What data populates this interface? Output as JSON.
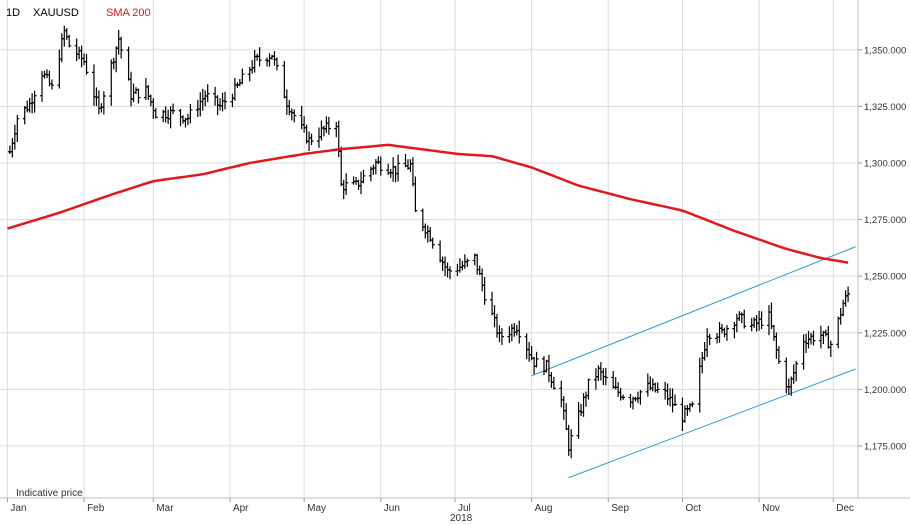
{
  "header": {
    "interval": "1D",
    "symbol": "XAUUSD",
    "indicator": "SMA 200"
  },
  "footer": {
    "note": "Indicative price",
    "year": "2018"
  },
  "colors": {
    "candle": "#000000",
    "sma": "#e0191f",
    "channel": "#2f9ad6",
    "grid": "#dcdcdc",
    "axis_text": "#333333",
    "indicator_label": "#e0191f"
  },
  "chart_data": {
    "type": "line",
    "title": "",
    "xlabel": "",
    "ylabel": "",
    "ylim": [
      1152,
      1372
    ],
    "y_ticks": [
      "1,175.000",
      "1,200.000",
      "1,225.000",
      "1,250.000",
      "1,275.000",
      "1,300.000",
      "1,325.000",
      "1,350.000"
    ],
    "y_tick_values": [
      1175,
      1200,
      1225,
      1250,
      1275,
      1300,
      1325,
      1350
    ],
    "x_ticks": [
      "Jan",
      "Feb",
      "Mar",
      "Apr",
      "May",
      "Jun",
      "Jul",
      "Aug",
      "Sep",
      "Oct",
      "Nov",
      "Dec"
    ],
    "grid": true,
    "series": [
      {
        "name": "XAUUSD",
        "style": "ohlc-bars",
        "anchors": [
          [
            "2018-01-02",
            1305
          ],
          [
            "2018-01-05",
            1320
          ],
          [
            "2018-01-10",
            1326
          ],
          [
            "2018-01-15",
            1340
          ],
          [
            "2018-01-19",
            1333
          ],
          [
            "2018-01-24",
            1358
          ],
          [
            "2018-01-26",
            1352
          ],
          [
            "2018-02-01",
            1345
          ],
          [
            "2018-02-07",
            1323
          ],
          [
            "2018-02-15",
            1355
          ],
          [
            "2018-02-20",
            1330
          ],
          [
            "2018-02-26",
            1332
          ],
          [
            "2018-03-02",
            1322
          ],
          [
            "2018-03-09",
            1322
          ],
          [
            "2018-03-15",
            1320
          ],
          [
            "2018-03-22",
            1330
          ],
          [
            "2018-03-28",
            1325
          ],
          [
            "2018-04-03",
            1332
          ],
          [
            "2018-04-11",
            1345
          ],
          [
            "2018-04-18",
            1348
          ],
          [
            "2018-04-24",
            1327
          ],
          [
            "2018-04-30",
            1315
          ],
          [
            "2018-05-03",
            1310
          ],
          [
            "2018-05-08",
            1314
          ],
          [
            "2018-05-14",
            1318
          ],
          [
            "2018-05-16",
            1290
          ],
          [
            "2018-05-22",
            1290
          ],
          [
            "2018-05-30",
            1300
          ],
          [
            "2018-06-07",
            1297
          ],
          [
            "2018-06-13",
            1299
          ],
          [
            "2018-06-15",
            1278
          ],
          [
            "2018-06-21",
            1268
          ],
          [
            "2018-06-28",
            1252
          ],
          [
            "2018-07-05",
            1255
          ],
          [
            "2018-07-09",
            1258
          ],
          [
            "2018-07-13",
            1242
          ],
          [
            "2018-07-19",
            1223
          ],
          [
            "2018-07-26",
            1228
          ],
          [
            "2018-08-02",
            1212
          ],
          [
            "2018-08-07",
            1210
          ],
          [
            "2018-08-13",
            1195
          ],
          [
            "2018-08-16",
            1175
          ],
          [
            "2018-08-20",
            1188
          ],
          [
            "2018-08-24",
            1202
          ],
          [
            "2018-08-28",
            1208
          ],
          [
            "2018-09-03",
            1200
          ],
          [
            "2018-09-10",
            1196
          ],
          [
            "2018-09-17",
            1201
          ],
          [
            "2018-09-24",
            1198
          ],
          [
            "2018-10-01",
            1188
          ],
          [
            "2018-10-05",
            1192
          ],
          [
            "2018-10-11",
            1225
          ],
          [
            "2018-10-17",
            1225
          ],
          [
            "2018-10-23",
            1232
          ],
          [
            "2018-10-29",
            1228
          ],
          [
            "2018-11-05",
            1232
          ],
          [
            "2018-11-09",
            1212
          ],
          [
            "2018-11-13",
            1200
          ],
          [
            "2018-11-19",
            1222
          ],
          [
            "2018-11-26",
            1224
          ],
          [
            "2018-11-30",
            1220
          ],
          [
            "2018-12-03",
            1230
          ],
          [
            "2018-12-05",
            1238
          ],
          [
            "2018-12-07",
            1242
          ]
        ]
      },
      {
        "name": "SMA 200",
        "style": "line",
        "anchors": [
          [
            "2018-01-01",
            1271
          ],
          [
            "2018-01-22",
            1278
          ],
          [
            "2018-02-12",
            1286
          ],
          [
            "2018-03-01",
            1292
          ],
          [
            "2018-03-21",
            1295
          ],
          [
            "2018-04-09",
            1300
          ],
          [
            "2018-05-01",
            1304
          ],
          [
            "2018-05-15",
            1306
          ],
          [
            "2018-06-04",
            1308
          ],
          [
            "2018-06-18",
            1306
          ],
          [
            "2018-07-02",
            1304
          ],
          [
            "2018-07-16",
            1303
          ],
          [
            "2018-08-01",
            1298
          ],
          [
            "2018-08-20",
            1290
          ],
          [
            "2018-09-10",
            1284
          ],
          [
            "2018-10-01",
            1279
          ],
          [
            "2018-10-22",
            1270
          ],
          [
            "2018-11-12",
            1262
          ],
          [
            "2018-11-26",
            1258
          ],
          [
            "2018-12-07",
            1256
          ]
        ]
      }
    ],
    "trend_channel": {
      "upper": [
        [
          "2018-08-01",
          1206
        ],
        [
          "2018-12-10",
          1263
        ]
      ],
      "lower": [
        [
          "2018-08-16",
          1161
        ],
        [
          "2018-12-10",
          1209
        ]
      ]
    }
  }
}
